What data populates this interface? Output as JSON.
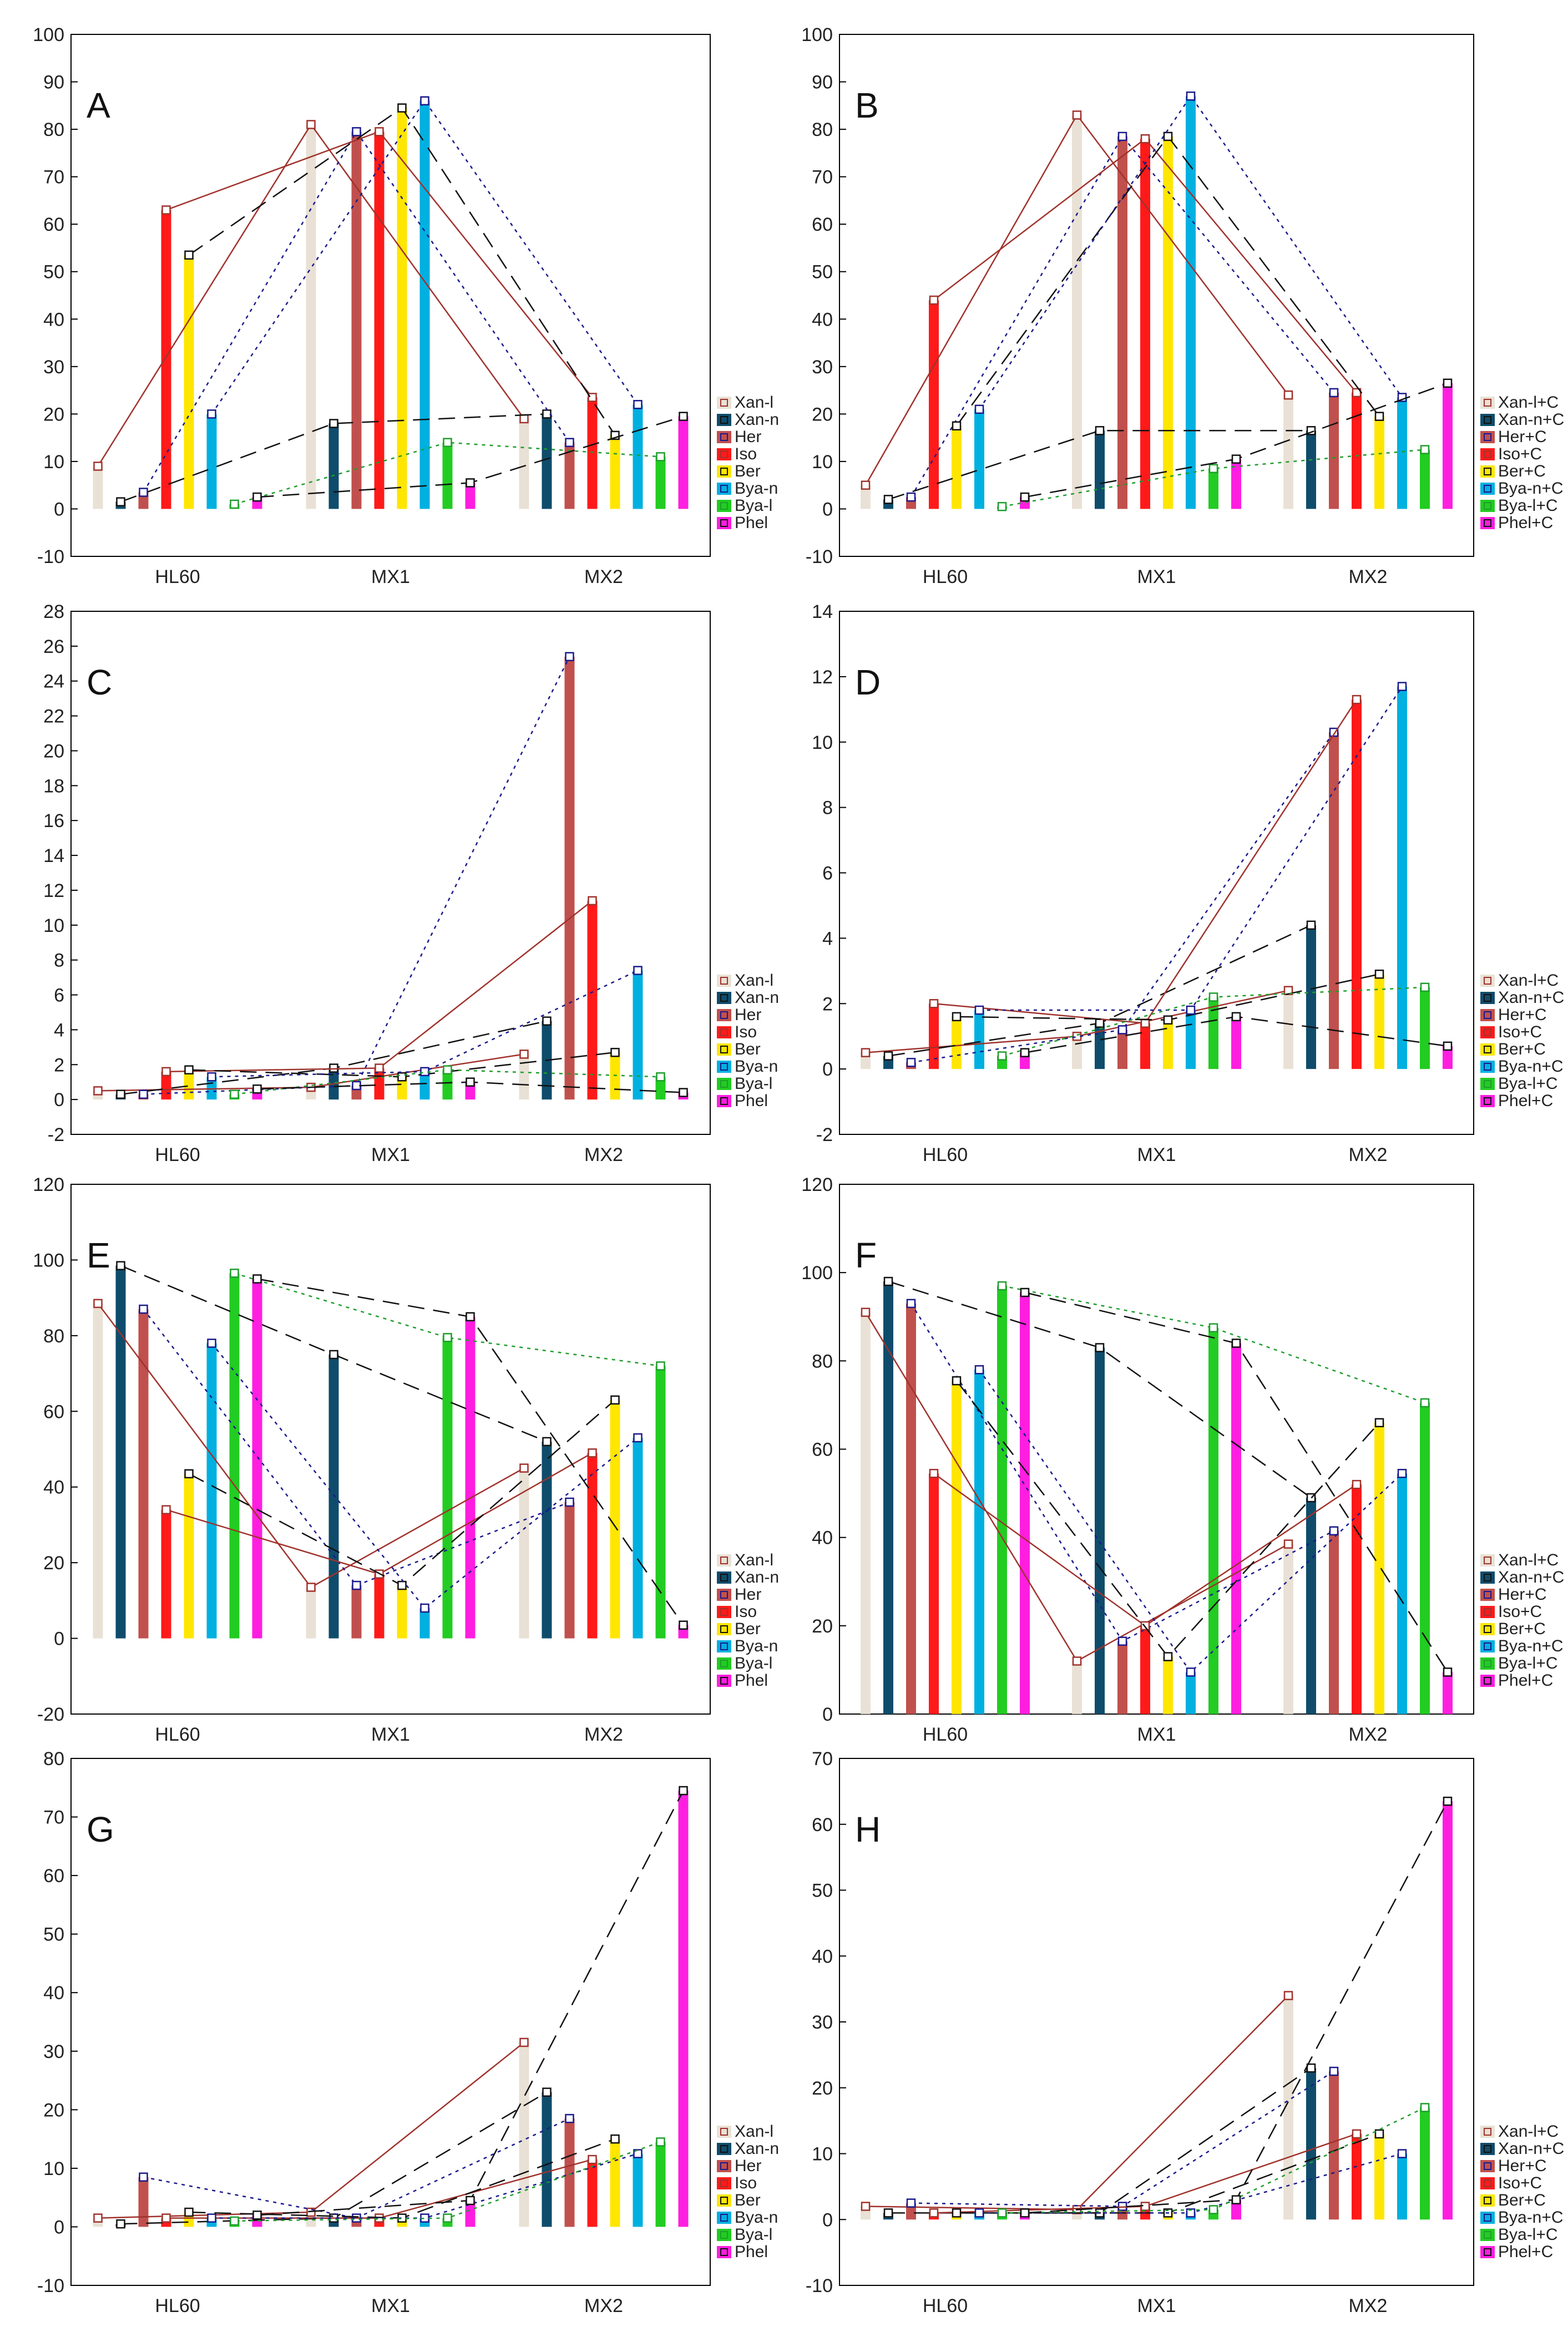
{
  "figure": {
    "categories": [
      "HL60",
      "MX1",
      "MX2"
    ],
    "colors": {
      "Xan-l": "#e9e1d5",
      "Xan-n": "#0f4c6b",
      "Her": "#c0504d",
      "Iso": "#ff1a1a",
      "Ber": "#ffe600",
      "Bya-n": "#00b0e0",
      "Bya-l": "#22cc22",
      "Phel": "#ff1ee0"
    },
    "line_styles": {
      "Xan-l": {
        "color": "#a0322c",
        "dash": ""
      },
      "Xan-n": {
        "color": "#111111",
        "dash": "dashed"
      },
      "Her": {
        "color": "#1a1a8c",
        "dash": "dotted"
      },
      "Iso": {
        "color": "#a0322c",
        "dash": ""
      },
      "Ber": {
        "color": "#111111",
        "dash": "dashed"
      },
      "Bya-n": {
        "color": "#1a1a8c",
        "dash": "dotted"
      },
      "Bya-l": {
        "color": "#1e9e2c",
        "dash": "dotted"
      },
      "Phel": {
        "color": "#111111",
        "dash": "dashed"
      }
    }
  },
  "chart_data": [
    {
      "type": "bar",
      "panel": "A",
      "categories": [
        "HL60",
        "MX1",
        "MX2"
      ],
      "ylim": [
        -10,
        100
      ],
      "ticks": [
        -10,
        0,
        10,
        20,
        30,
        40,
        50,
        60,
        70,
        80,
        90,
        100
      ],
      "series": [
        {
          "name": "Xan-l",
          "values": [
            9,
            81,
            19
          ]
        },
        {
          "name": "Xan-n",
          "values": [
            1.5,
            18,
            20
          ]
        },
        {
          "name": "Her",
          "values": [
            3.5,
            79.5,
            14
          ]
        },
        {
          "name": "Iso",
          "values": [
            63,
            79.5,
            23.5
          ]
        },
        {
          "name": "Ber",
          "values": [
            53.5,
            84.5,
            15.5
          ]
        },
        {
          "name": "Bya-n",
          "values": [
            20,
            86,
            22
          ]
        },
        {
          "name": "Bya-l",
          "values": [
            1,
            14,
            11
          ]
        },
        {
          "name": "Phel",
          "values": [
            2.5,
            5.5,
            19.5
          ]
        }
      ]
    },
    {
      "type": "bar",
      "panel": "B",
      "categories": [
        "HL60",
        "MX1",
        "MX2"
      ],
      "ylim": [
        -10,
        100
      ],
      "ticks": [
        -10,
        0,
        10,
        20,
        30,
        40,
        50,
        60,
        70,
        80,
        90,
        100
      ],
      "series": [
        {
          "name": "Xan-l+C",
          "values": [
            5,
            83,
            24
          ]
        },
        {
          "name": "Xan-n+C",
          "values": [
            2,
            16.5,
            16.5
          ]
        },
        {
          "name": "Her+C",
          "values": [
            2.5,
            78.5,
            24.5
          ]
        },
        {
          "name": "Iso+C",
          "values": [
            44,
            78,
            24.5
          ]
        },
        {
          "name": "Ber+C",
          "values": [
            17.5,
            78.5,
            19.5
          ]
        },
        {
          "name": "Bya-n+C",
          "values": [
            21,
            87,
            23.5
          ]
        },
        {
          "name": "Bya-l+C",
          "values": [
            0.5,
            8.5,
            12.5
          ]
        },
        {
          "name": "Phel+C",
          "values": [
            2.5,
            10.5,
            26.5
          ]
        }
      ]
    },
    {
      "type": "bar",
      "panel": "C",
      "categories": [
        "HL60",
        "MX1",
        "MX2"
      ],
      "ylim": [
        -2,
        28
      ],
      "ticks": [
        -2,
        0,
        2,
        4,
        6,
        8,
        10,
        12,
        14,
        16,
        18,
        20,
        22,
        24,
        26,
        28
      ],
      "series": [
        {
          "name": "Xan-l",
          "values": [
            0.5,
            0.7,
            2.6
          ]
        },
        {
          "name": "Xan-n",
          "values": [
            0.3,
            1.8,
            4.5
          ]
        },
        {
          "name": "Her",
          "values": [
            0.3,
            0.8,
            25.4
          ]
        },
        {
          "name": "Iso",
          "values": [
            1.6,
            1.8,
            11.4
          ]
        },
        {
          "name": "Ber",
          "values": [
            1.7,
            1.3,
            2.7
          ]
        },
        {
          "name": "Bya-n",
          "values": [
            1.3,
            1.6,
            7.4
          ]
        },
        {
          "name": "Bya-l",
          "values": [
            0.3,
            1.7,
            1.3
          ]
        },
        {
          "name": "Phel",
          "values": [
            0.6,
            1.0,
            0.4
          ]
        }
      ]
    },
    {
      "type": "bar",
      "panel": "D",
      "categories": [
        "HL60",
        "MX1",
        "MX2"
      ],
      "ylim": [
        -2,
        14
      ],
      "ticks": [
        -2,
        0,
        2,
        4,
        6,
        8,
        10,
        12,
        14
      ],
      "series": [
        {
          "name": "Xan-l+C",
          "values": [
            0.5,
            1.0,
            2.4
          ]
        },
        {
          "name": "Xan-n+C",
          "values": [
            0.4,
            1.4,
            4.4
          ]
        },
        {
          "name": "Her+C",
          "values": [
            0.2,
            1.2,
            10.3
          ]
        },
        {
          "name": "Iso+C",
          "values": [
            2.0,
            1.4,
            11.3
          ]
        },
        {
          "name": "Ber+C",
          "values": [
            1.6,
            1.5,
            2.9
          ]
        },
        {
          "name": "Bya-n+C",
          "values": [
            1.8,
            1.8,
            11.7
          ]
        },
        {
          "name": "Bya-l+C",
          "values": [
            0.4,
            2.2,
            2.5
          ]
        },
        {
          "name": "Phel+C",
          "values": [
            0.5,
            1.6,
            0.7
          ]
        }
      ]
    },
    {
      "type": "bar",
      "panel": "E",
      "categories": [
        "HL60",
        "MX1",
        "MX2"
      ],
      "ylim": [
        -20,
        120
      ],
      "ticks": [
        -20,
        0,
        20,
        40,
        60,
        80,
        100,
        120
      ],
      "series": [
        {
          "name": "Xan-l",
          "values": [
            88.5,
            13.5,
            45
          ]
        },
        {
          "name": "Xan-n",
          "values": [
            98.5,
            75,
            52
          ]
        },
        {
          "name": "Her",
          "values": [
            87,
            14,
            36
          ]
        },
        {
          "name": "Iso",
          "values": [
            34,
            17,
            49
          ]
        },
        {
          "name": "Ber",
          "values": [
            43.5,
            14,
            63
          ]
        },
        {
          "name": "Bya-n",
          "values": [
            78,
            8,
            53
          ]
        },
        {
          "name": "Bya-l",
          "values": [
            96.5,
            79.5,
            72
          ]
        },
        {
          "name": "Phel",
          "values": [
            95,
            85,
            3.5
          ]
        }
      ]
    },
    {
      "type": "bar",
      "panel": "F",
      "categories": [
        "HL60",
        "MX1",
        "MX2"
      ],
      "ylim": [
        0,
        120
      ],
      "ticks": [
        0,
        20,
        40,
        60,
        80,
        100,
        120
      ],
      "series": [
        {
          "name": "Xan-l+C",
          "values": [
            91,
            12,
            38.5
          ]
        },
        {
          "name": "Xan-n+C",
          "values": [
            98,
            83,
            49
          ]
        },
        {
          "name": "Her+C",
          "values": [
            93,
            16.5,
            41.5
          ]
        },
        {
          "name": "Iso+C",
          "values": [
            54.5,
            20,
            52
          ]
        },
        {
          "name": "Ber+C",
          "values": [
            75.5,
            13,
            66
          ]
        },
        {
          "name": "Bya-n+C",
          "values": [
            78,
            9.5,
            54.5
          ]
        },
        {
          "name": "Bya-l+C",
          "values": [
            97,
            87.5,
            70.5
          ]
        },
        {
          "name": "Phel+C",
          "values": [
            95.5,
            84,
            9.5
          ]
        }
      ]
    },
    {
      "type": "bar",
      "panel": "G",
      "categories": [
        "HL60",
        "MX1",
        "MX2"
      ],
      "ylim": [
        -10,
        80
      ],
      "ticks": [
        -10,
        0,
        10,
        20,
        30,
        40,
        50,
        60,
        70,
        80
      ],
      "series": [
        {
          "name": "Xan-l",
          "values": [
            1.5,
            2.5,
            31.5
          ]
        },
        {
          "name": "Xan-n",
          "values": [
            0.5,
            1.5,
            23
          ]
        },
        {
          "name": "Her",
          "values": [
            8.5,
            1.5,
            18.5
          ]
        },
        {
          "name": "Iso",
          "values": [
            1.5,
            1.5,
            11.5
          ]
        },
        {
          "name": "Ber",
          "values": [
            2.5,
            1.5,
            15
          ]
        },
        {
          "name": "Bya-n",
          "values": [
            1.5,
            1.5,
            12.5
          ]
        },
        {
          "name": "Bya-l",
          "values": [
            1.0,
            1.5,
            14.5
          ]
        },
        {
          "name": "Phel",
          "values": [
            2.0,
            4.5,
            74.5
          ]
        }
      ]
    },
    {
      "type": "bar",
      "panel": "H",
      "categories": [
        "HL60",
        "MX1",
        "MX2"
      ],
      "ylim": [
        -10,
        70
      ],
      "ticks": [
        -10,
        0,
        10,
        20,
        30,
        40,
        50,
        60,
        70
      ],
      "series": [
        {
          "name": "Xan-l+C",
          "values": [
            2.0,
            1.5,
            34
          ]
        },
        {
          "name": "Xan-n+C",
          "values": [
            1.0,
            1.0,
            23
          ]
        },
        {
          "name": "Her+C",
          "values": [
            2.5,
            2.0,
            22.5
          ]
        },
        {
          "name": "Iso+C",
          "values": [
            1.0,
            2.0,
            13
          ]
        },
        {
          "name": "Ber+C",
          "values": [
            1.0,
            1.0,
            13
          ]
        },
        {
          "name": "Bya-n+C",
          "values": [
            1.0,
            1.0,
            10
          ]
        },
        {
          "name": "Bya-l+C",
          "values": [
            1.0,
            1.5,
            17
          ]
        },
        {
          "name": "Phel+C",
          "values": [
            1.0,
            3.0,
            63.5
          ]
        }
      ]
    }
  ]
}
